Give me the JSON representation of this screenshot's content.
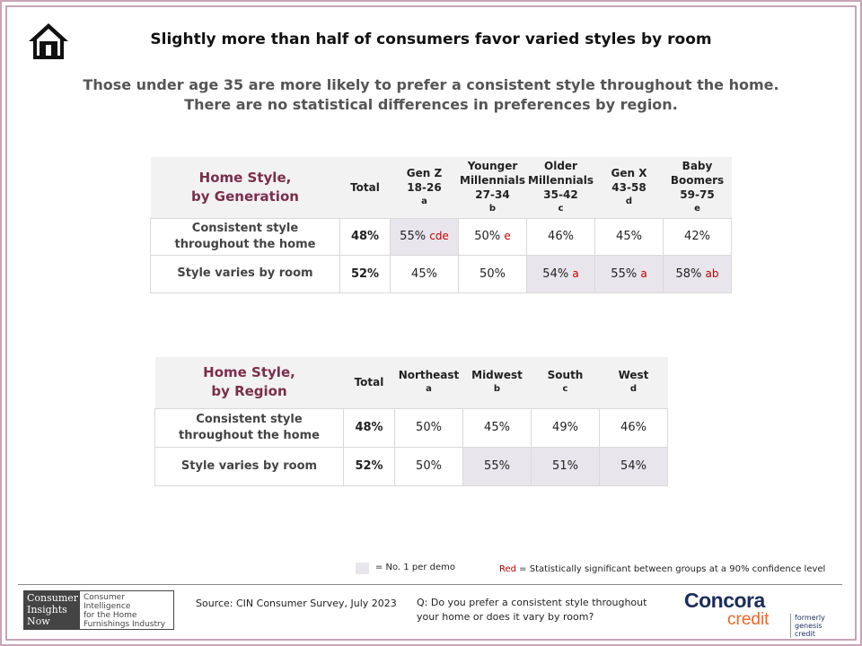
{
  "title": "Slightly more than half of consumers favor varied styles by room",
  "subtitle_lines": [
    "Those under age 35 are more likely to prefer a consistent style throughout the home.",
    "There are no statistical differences in preferences by region."
  ],
  "generation_table": {
    "corner_title": [
      "Home Style,",
      "by Generation"
    ],
    "total_label": "Total",
    "columns": [
      {
        "lines": [
          "Gen Z",
          "18-26"
        ],
        "letter": "a"
      },
      {
        "lines": [
          "Younger",
          "Millennials",
          "27-34"
        ],
        "letter": "b"
      },
      {
        "lines": [
          "Older",
          "Millennials",
          "35-42"
        ],
        "letter": "c"
      },
      {
        "lines": [
          "Gen X",
          "43-58"
        ],
        "letter": "d"
      },
      {
        "lines": [
          "Baby",
          "Boomers",
          "59-75"
        ],
        "letter": "e"
      }
    ],
    "rows": [
      {
        "label": [
          "Consistent style",
          "throughout the home"
        ],
        "total": "48%",
        "cells": [
          {
            "value": "55%",
            "sig": "cde"
          },
          {
            "value": "50%",
            "sig": "e"
          },
          {
            "value": "46%",
            "sig": ""
          },
          {
            "value": "45%",
            "sig": ""
          },
          {
            "value": "42%",
            "sig": ""
          }
        ]
      },
      {
        "label": [
          "Style varies by room"
        ],
        "total": "52%",
        "cells": [
          {
            "value": "45%",
            "sig": ""
          },
          {
            "value": "50%",
            "sig": ""
          },
          {
            "value": "54%",
            "sig": "a"
          },
          {
            "value": "55%",
            "sig": "a"
          },
          {
            "value": "58%",
            "sig": "ab"
          }
        ]
      }
    ]
  },
  "region_table": {
    "corner_title": [
      "Home Style,",
      "by Region"
    ],
    "total_label": "Total",
    "columns": [
      {
        "lines": [
          "Northeast"
        ],
        "letter": "a"
      },
      {
        "lines": [
          "Midwest"
        ],
        "letter": "b"
      },
      {
        "lines": [
          "South"
        ],
        "letter": "c"
      },
      {
        "lines": [
          "West"
        ],
        "letter": "d"
      }
    ],
    "rows": [
      {
        "label": [
          "Consistent style",
          "throughout the home"
        ],
        "total": "48%",
        "cells": [
          {
            "value": "50%",
            "sig": ""
          },
          {
            "value": "45%",
            "sig": ""
          },
          {
            "value": "49%",
            "sig": ""
          },
          {
            "value": "46%",
            "sig": ""
          }
        ]
      },
      {
        "label": [
          "Style varies by room"
        ],
        "total": "52%",
        "cells": [
          {
            "value": "50%",
            "sig": ""
          },
          {
            "value": "55%",
            "sig": ""
          },
          {
            "value": "51%",
            "sig": ""
          },
          {
            "value": "54%",
            "sig": ""
          }
        ]
      }
    ]
  },
  "legend": {
    "shade_text": "= No. 1 per demo",
    "red_word": "Red",
    "red_text": " = Statistically significant between groups at a 90% confidence level"
  },
  "footer": {
    "cin_logo_lines": [
      "Consumer",
      "Insights",
      "Now"
    ],
    "cin_tagline": [
      "Consumer Intelligence",
      "for the Home",
      "Furnishings Industry"
    ],
    "source": "Source: CIN Consumer Survey, July 2023",
    "question_lines": [
      "Q: Do you prefer a consistent style throughout",
      "your home or does it vary by room?"
    ],
    "concora_brand": "Concora",
    "concora_credit": "credit",
    "concora_formerly": [
      "formerly",
      "genesis credit"
    ]
  },
  "icons": {
    "home": "house-icon"
  },
  "colors": {
    "frame": "#c8a4b8",
    "table_title": "#7a2e4a",
    "shade": "#e8e6ec",
    "significance_red": "#c00000",
    "concora_navy": "#1a2c5c",
    "concora_orange": "#f26522"
  }
}
